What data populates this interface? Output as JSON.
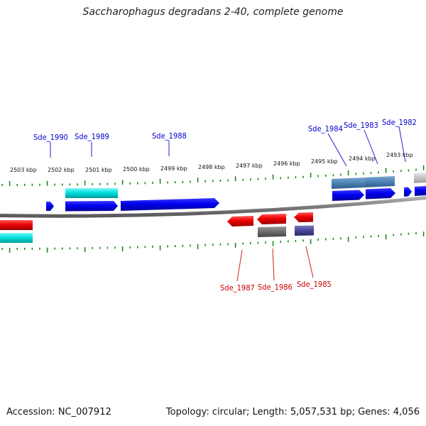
{
  "title": "Saccharophagus degradans 2-40, complete genome",
  "footer": {
    "accession": "Accession: NC_007912",
    "summary": "Topology: circular; Length: 5,057,531 bp; Genes: 4,056"
  },
  "scale_labels": [
    "2503 kbp",
    "2502 kbp",
    "2501 kbp",
    "2500 kbp",
    "2499 kbp",
    "2498 kbp",
    "2497 kbp",
    "2496 kbp",
    "2495 kbp",
    "2494 kbp",
    "2493 kbp"
  ],
  "gene_labels_forward": [
    "Sde_1990",
    "Sde_1989",
    "Sde_1988",
    "Sde_1984",
    "Sde_1983",
    "Sde_1982"
  ],
  "gene_labels_reverse": [
    "Sde_1987",
    "Sde_1986",
    "Sde_1985"
  ],
  "colors": {
    "forward_gene": "#0000ee",
    "forward_cds": "#00dddd",
    "reverse_gene": "#ee0000",
    "reverse_label": "#cc0000",
    "forward_label": "#0000cc",
    "backbone": "#8a8a8a",
    "tick": "#1a8a1a",
    "steelblue_cds": "#4f86b8",
    "gray_cds": "#6e6e6e",
    "purple_cds": "#4a4a9a",
    "lightgray_cds": "#c8c8c8"
  }
}
